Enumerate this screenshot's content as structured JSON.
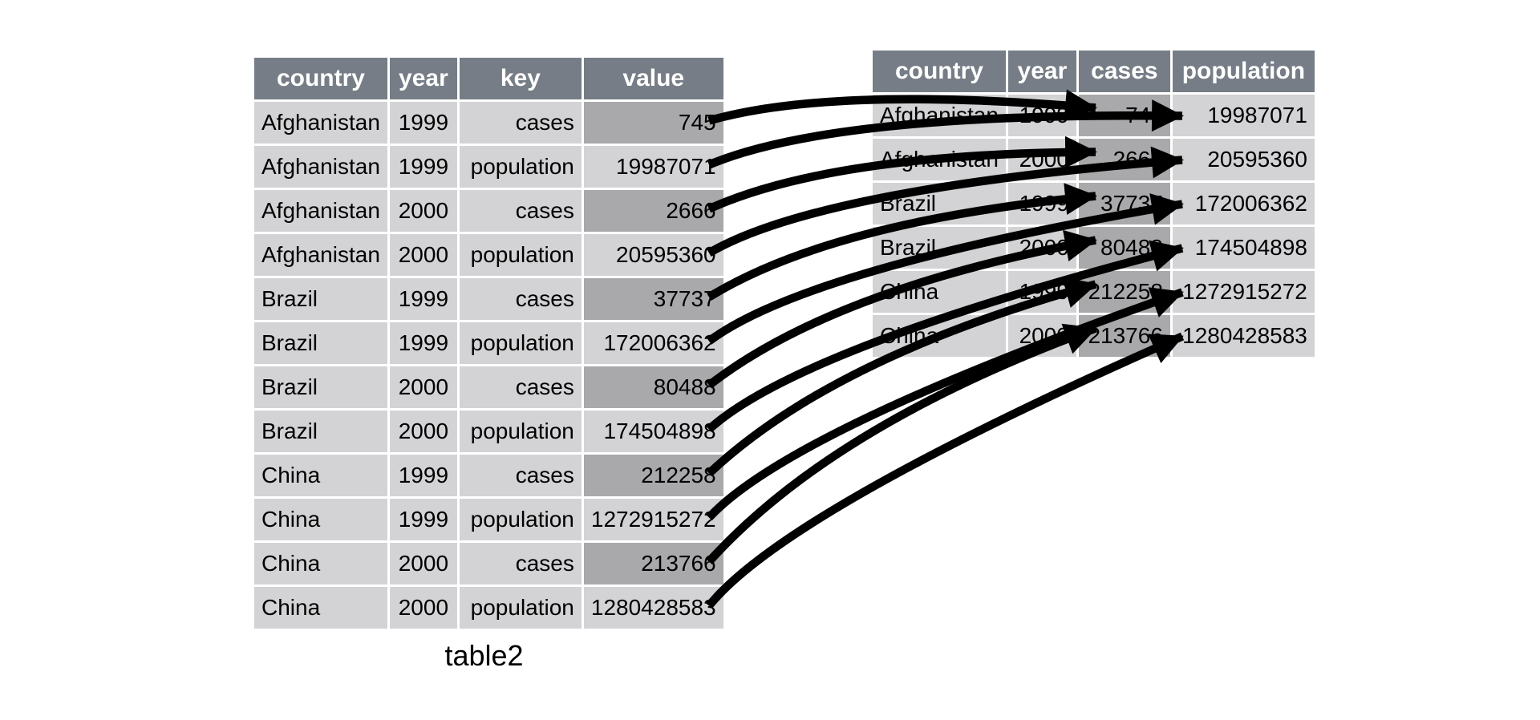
{
  "colors": {
    "header_bg": "#767d86",
    "header_text": "#ffffff",
    "cell_bg": "#d3d3d5",
    "highlight_bg": "#a9a9ab",
    "cell_text": "#000000",
    "arrow": "#000000"
  },
  "left_table": {
    "caption": "table2",
    "columns": [
      "country",
      "year",
      "key",
      "value"
    ],
    "rows": [
      {
        "country": "Afghanistan",
        "year": "1999",
        "key": "cases",
        "value": "745",
        "value_highlighted": true
      },
      {
        "country": "Afghanistan",
        "year": "1999",
        "key": "population",
        "value": "19987071",
        "value_highlighted": false
      },
      {
        "country": "Afghanistan",
        "year": "2000",
        "key": "cases",
        "value": "2666",
        "value_highlighted": true
      },
      {
        "country": "Afghanistan",
        "year": "2000",
        "key": "population",
        "value": "20595360",
        "value_highlighted": false
      },
      {
        "country": "Brazil",
        "year": "1999",
        "key": "cases",
        "value": "37737",
        "value_highlighted": true
      },
      {
        "country": "Brazil",
        "year": "1999",
        "key": "population",
        "value": "172006362",
        "value_highlighted": false
      },
      {
        "country": "Brazil",
        "year": "2000",
        "key": "cases",
        "value": "80488",
        "value_highlighted": true
      },
      {
        "country": "Brazil",
        "year": "2000",
        "key": "population",
        "value": "174504898",
        "value_highlighted": false
      },
      {
        "country": "China",
        "year": "1999",
        "key": "cases",
        "value": "212258",
        "value_highlighted": true
      },
      {
        "country": "China",
        "year": "1999",
        "key": "population",
        "value": "1272915272",
        "value_highlighted": false
      },
      {
        "country": "China",
        "year": "2000",
        "key": "cases",
        "value": "213766",
        "value_highlighted": true
      },
      {
        "country": "China",
        "year": "2000",
        "key": "population",
        "value": "1280428583",
        "value_highlighted": false
      }
    ]
  },
  "right_table": {
    "columns": [
      "country",
      "year",
      "cases",
      "population"
    ],
    "highlight_column": "cases",
    "rows": [
      {
        "country": "Afghanistan",
        "year": "1999",
        "cases": "745",
        "population": "19987071"
      },
      {
        "country": "Afghanistan",
        "year": "2000",
        "cases": "2666",
        "population": "20595360"
      },
      {
        "country": "Brazil",
        "year": "1999",
        "cases": "37737",
        "population": "172006362"
      },
      {
        "country": "Brazil",
        "year": "2000",
        "cases": "80488",
        "population": "174504898"
      },
      {
        "country": "China",
        "year": "1999",
        "cases": "212258",
        "population": "1272915272"
      },
      {
        "country": "China",
        "year": "2000",
        "cases": "213766",
        "population": "1280428583"
      }
    ]
  },
  "arrows": [
    {
      "from_row": 0,
      "to_row": 0,
      "to_column": "cases"
    },
    {
      "from_row": 1,
      "to_row": 0,
      "to_column": "population"
    },
    {
      "from_row": 2,
      "to_row": 1,
      "to_column": "cases"
    },
    {
      "from_row": 3,
      "to_row": 1,
      "to_column": "population"
    },
    {
      "from_row": 4,
      "to_row": 2,
      "to_column": "cases"
    },
    {
      "from_row": 5,
      "to_row": 2,
      "to_column": "population"
    },
    {
      "from_row": 6,
      "to_row": 3,
      "to_column": "cases"
    },
    {
      "from_row": 7,
      "to_row": 3,
      "to_column": "population"
    },
    {
      "from_row": 8,
      "to_row": 4,
      "to_column": "cases"
    },
    {
      "from_row": 9,
      "to_row": 4,
      "to_column": "population"
    },
    {
      "from_row": 10,
      "to_row": 5,
      "to_column": "cases"
    },
    {
      "from_row": 11,
      "to_row": 5,
      "to_column": "population"
    }
  ]
}
